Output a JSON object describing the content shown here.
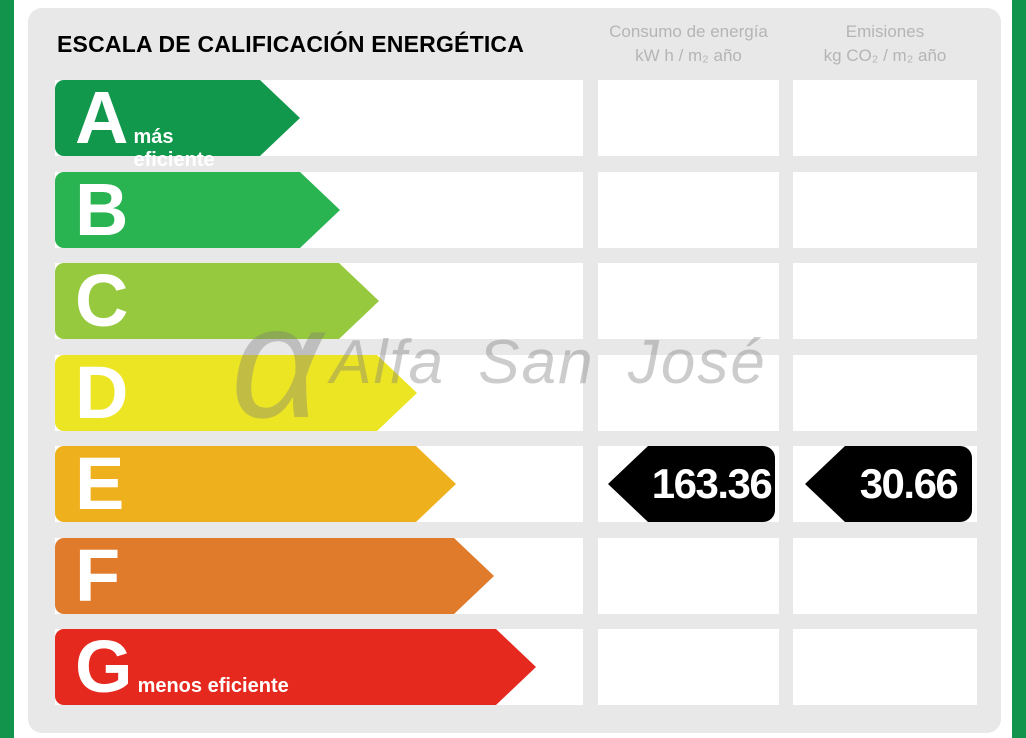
{
  "title": "ESCALA DE CALIFICACIÓN ENERGÉTICA",
  "columns": {
    "consumption": {
      "line1": "Consumo de energía",
      "line2": "kW h / m₂ año"
    },
    "emissions": {
      "line1": "Emisiones",
      "line2": "kg CO₂ / m₂ año"
    }
  },
  "ratings": [
    {
      "letter": "A",
      "note": "más eficiente",
      "color": "#12984d",
      "bar_length": 245
    },
    {
      "letter": "B",
      "color": "#2ab351",
      "bar_length": 285
    },
    {
      "letter": "C",
      "color": "#96c93d",
      "bar_length": 324
    },
    {
      "letter": "D",
      "color": "#ece524",
      "bar_length": 362
    },
    {
      "letter": "E",
      "color": "#efb01d",
      "bar_length": 401
    },
    {
      "letter": "F",
      "color": "#e07b2c",
      "bar_length": 439
    },
    {
      "letter": "G",
      "note": "menos eficiente",
      "color": "#e5291f",
      "bar_length": 481
    }
  ],
  "current_rating": {
    "letter": "E",
    "consumption": "163.36",
    "emissions": "30.66"
  },
  "watermark": {
    "symbol": "α",
    "text": "Alfa San José"
  },
  "colors": {
    "frame_green": "#12944d",
    "panel_gray": "#e8e8e8",
    "badge_black": "#000000",
    "header_text_gray": "#b5b5b5",
    "title_black": "#000000"
  },
  "chart_data": {
    "type": "bar",
    "orientation": "horizontal",
    "title": "ESCALA DE CALIFICACIÓN ENERGÉTICA",
    "categories": [
      "A",
      "B",
      "C",
      "D",
      "E",
      "F",
      "G"
    ],
    "series": [
      {
        "name": "scale_bar_length_px",
        "values": [
          245,
          285,
          324,
          362,
          401,
          439,
          481
        ]
      }
    ],
    "bar_colors": [
      "#12984d",
      "#2ab351",
      "#96c93d",
      "#ece524",
      "#efb01d",
      "#e07b2c",
      "#e5291f"
    ],
    "annotations": [
      {
        "category": "A",
        "label": "más eficiente"
      },
      {
        "category": "G",
        "label": "menos eficiente"
      }
    ],
    "selected_category": "E",
    "values_for_selected": {
      "consumo_de_energia_kwh_m2_ano": 163.36,
      "emisiones_kg_co2_m2_ano": 30.66
    },
    "column_headers": [
      "Consumo de energía kW h / m₂ año",
      "Emisiones kg CO₂ / m₂ año"
    ],
    "legend_position": "none",
    "grid": false
  }
}
